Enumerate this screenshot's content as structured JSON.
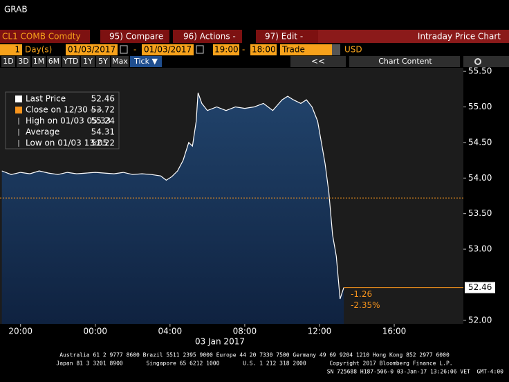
{
  "header": {
    "title": "GRAB"
  },
  "toolbar": {
    "security": "CL1 COMB Comdty",
    "buttons": [
      "95) Compare",
      "96) Actions -",
      "97) Edit -"
    ],
    "view": "Intraday Price Chart",
    "period": "1",
    "period_unit": "Day(s)",
    "start_date": "01/03/2017",
    "separator": "-",
    "end_date": "01/03/2017",
    "start_time": "19:00",
    "end_time": "18:00",
    "field": "Trade",
    "currency": "USD",
    "ranges": [
      "1D",
      "3D",
      "1M",
      "6M",
      "YTD",
      "1Y",
      "5Y",
      "Max",
      "Tick ▼"
    ],
    "back": "<<",
    "chart_content": "Chart Content"
  },
  "chart_data": {
    "type": "area",
    "date_label": "03 Jan 2017",
    "xlim": [
      -0.1,
      24.7
    ],
    "xticks": [
      {
        "value": 1,
        "label": "20:00"
      },
      {
        "value": 5,
        "label": "00:00"
      },
      {
        "value": 9,
        "label": "04:00"
      },
      {
        "value": 13,
        "label": "08:00"
      },
      {
        "value": 17,
        "label": "12:00"
      },
      {
        "value": 21,
        "label": "16:00"
      }
    ],
    "ylim": [
      51.95,
      55.55
    ],
    "yticks": [
      {
        "value": 52,
        "label": "52.00"
      },
      {
        "value": 53,
        "label": "53.00"
      },
      {
        "value": 53.5,
        "label": "53.50"
      },
      {
        "value": 54,
        "label": "54.00"
      },
      {
        "value": 54.5,
        "label": "54.50"
      },
      {
        "value": 55,
        "label": "55.00"
      },
      {
        "value": 55.5,
        "label": "55.50"
      }
    ],
    "series": [
      {
        "name": "Last Price",
        "color": "#ffffff",
        "x": [
          0,
          0.5,
          1,
          1.5,
          2,
          2.5,
          3,
          3.5,
          4,
          4.5,
          5,
          5.5,
          6,
          6.5,
          7,
          7.5,
          8,
          8.5,
          8.8,
          9.1,
          9.4,
          9.7,
          10,
          10.2,
          10.4,
          10.5,
          10.7,
          11,
          11.5,
          12,
          12.5,
          13,
          13.5,
          14,
          14.5,
          15,
          15.3,
          15.6,
          16,
          16.3,
          16.6,
          16.9,
          17.1,
          17.3,
          17.5,
          17.7,
          17.9,
          18.1,
          18.3
        ],
        "values": [
          54.1,
          54.05,
          54.08,
          54.06,
          54.1,
          54.07,
          54.05,
          54.08,
          54.06,
          54.07,
          54.08,
          54.07,
          54.06,
          54.08,
          54.05,
          54.06,
          54.05,
          54.03,
          53.97,
          54.02,
          54.1,
          54.25,
          54.5,
          54.45,
          54.8,
          55.2,
          55.05,
          54.95,
          55.0,
          54.95,
          55.0,
          54.98,
          55.0,
          55.05,
          54.95,
          55.1,
          55.15,
          55.1,
          55.05,
          55.1,
          55.0,
          54.8,
          54.5,
          54.2,
          53.8,
          53.2,
          52.9,
          52.3,
          52.46
        ]
      }
    ],
    "last_price": 52.46,
    "stats": [
      {
        "label": "Close on 12/30 ----",
        "value": 53.72,
        "color": "#f7941d"
      },
      {
        "label": "High on 01/03 05:33",
        "value": 55.24
      },
      {
        "label": "Average",
        "value": 54.31
      },
      {
        "label": "Low on 01/03 13:05",
        "value": 52.22
      }
    ],
    "change_labels": [
      "-1.26",
      "-2.35%"
    ]
  },
  "footer": {
    "lines": [
      "Australia 61 2 9777 8600 Brazil 5511 2395 9000 Europe 44 20 7330 7500 Germany 49 69 9204 1210 Hong Kong 852 2977 6000",
      "Japan 81 3 3201 8900       Singapore 65 6212 1000       U.S. 1 212 318 2000       Copyright 2017 Bloomberg Finance L.P.",
      "SN 725688 H187-506-0 03-Jan-17 13:26:06 VET  GMT-4:00"
    ]
  }
}
